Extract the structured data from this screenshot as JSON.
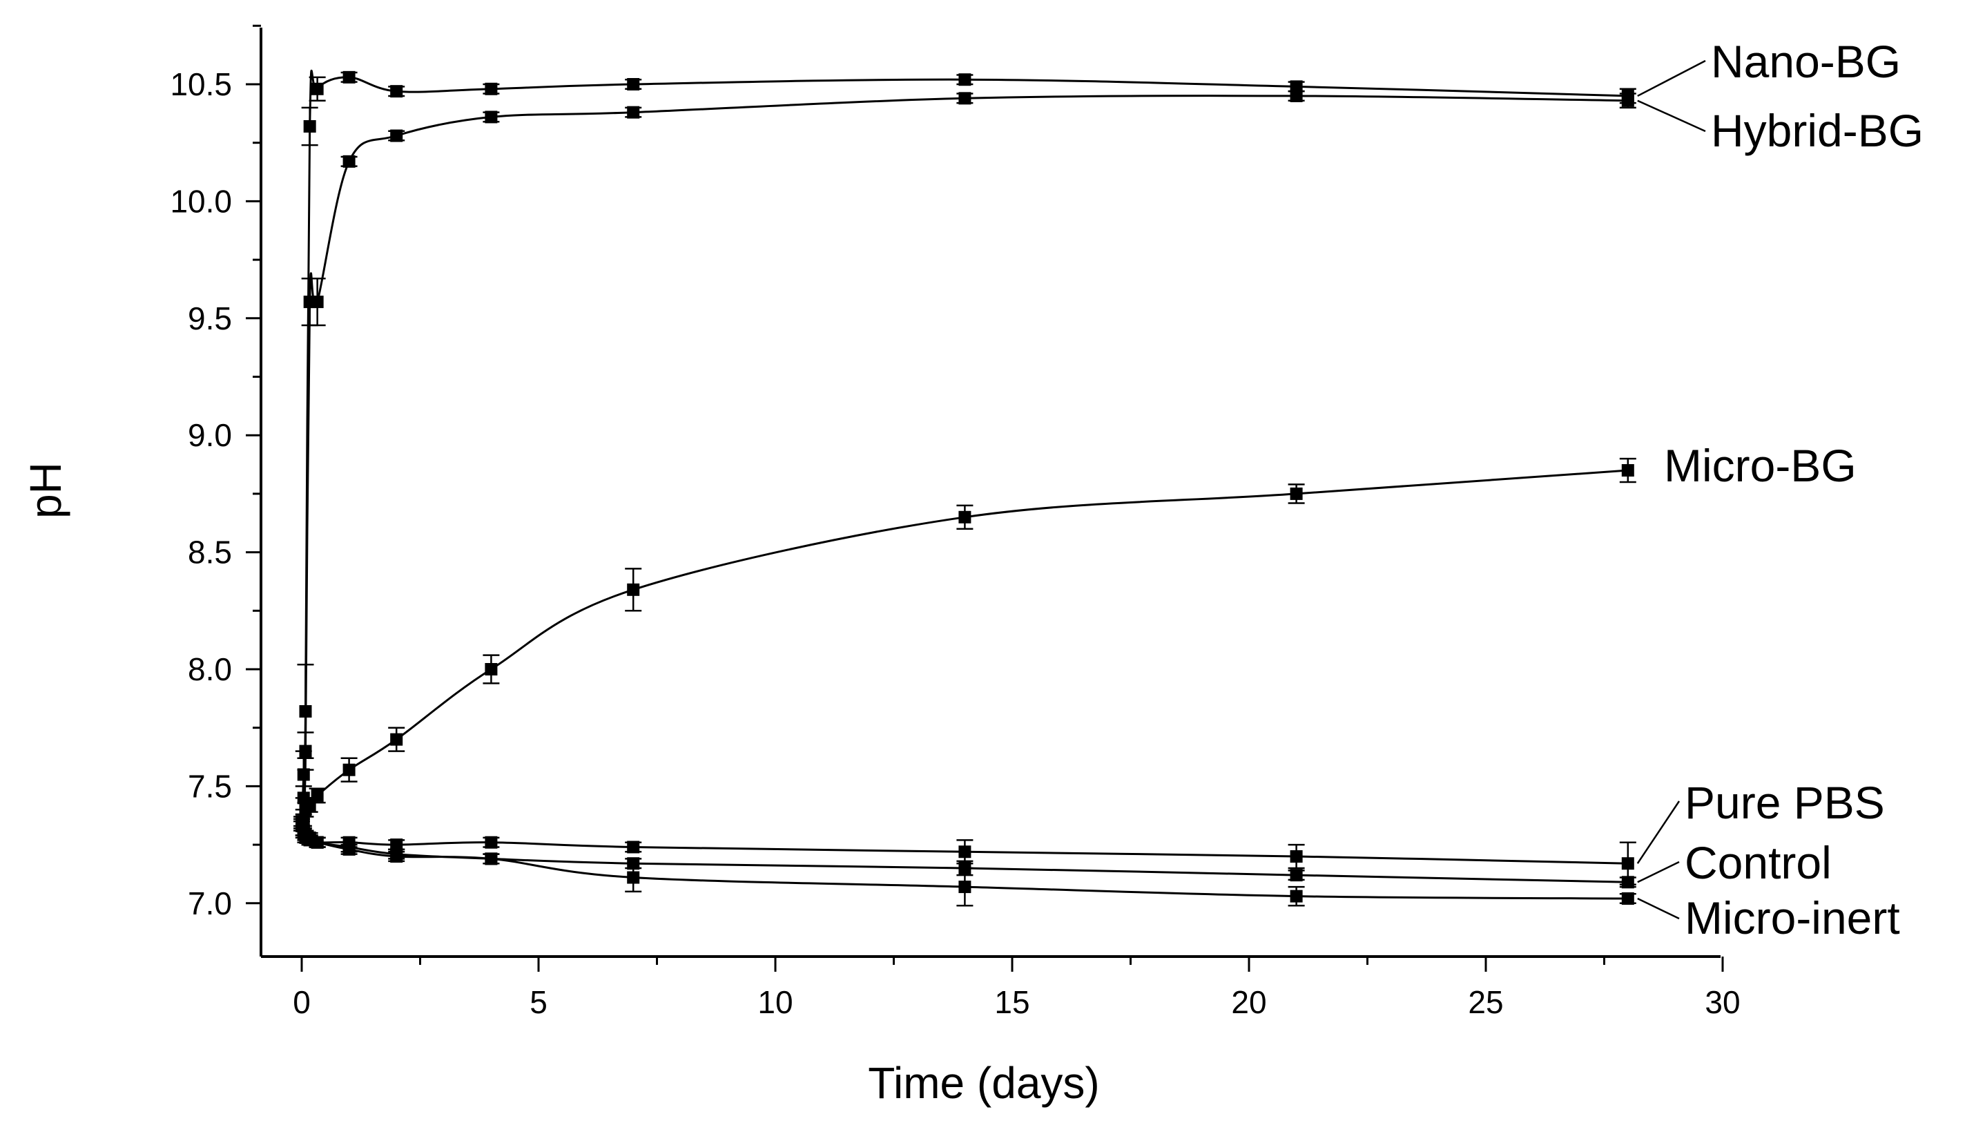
{
  "chart_data": {
    "type": "line",
    "title": "",
    "xlabel": "Time (days)",
    "ylabel": "pH",
    "xlim": [
      -0.9,
      30
    ],
    "ylim": [
      6.75,
      10.85
    ],
    "xticks": [
      0,
      5,
      10,
      15,
      20,
      25,
      30
    ],
    "yticks": [
      7.0,
      7.5,
      8.0,
      8.5,
      9.0,
      9.5,
      10.0,
      10.5
    ],
    "grid": false,
    "legend": "labels at right end of each curve",
    "series": [
      {
        "name": "Nano-BG",
        "x": [
          0,
          0.04,
          0.08,
          0.17,
          0.33,
          1,
          2,
          4,
          7,
          14,
          21,
          28
        ],
        "y": [
          7.33,
          7.55,
          7.82,
          10.32,
          10.48,
          10.53,
          10.47,
          10.48,
          10.5,
          10.52,
          10.49,
          10.45
        ],
        "err": [
          0.02,
          0.1,
          0.2,
          0.08,
          0.05,
          0.02,
          0.02,
          0.02,
          0.02,
          0.02,
          0.02,
          0.03
        ]
      },
      {
        "name": "Hybrid-BG",
        "x": [
          0,
          0.04,
          0.08,
          0.17,
          0.33,
          1,
          2,
          4,
          7,
          14,
          21,
          28
        ],
        "y": [
          7.35,
          7.45,
          7.65,
          9.57,
          9.57,
          10.17,
          10.28,
          10.36,
          10.38,
          10.44,
          10.45,
          10.43
        ],
        "err": [
          0.02,
          0.05,
          0.08,
          0.1,
          0.1,
          0.02,
          0.02,
          0.02,
          0.02,
          0.02,
          0.02,
          0.03
        ]
      },
      {
        "name": "Micro-BG",
        "x": [
          0,
          0.04,
          0.08,
          0.17,
          0.33,
          1,
          2,
          4,
          7,
          14,
          21,
          28
        ],
        "y": [
          7.33,
          7.35,
          7.4,
          7.42,
          7.46,
          7.57,
          7.7,
          8.0,
          8.34,
          8.65,
          8.75,
          8.85
        ],
        "err": [
          0.02,
          0.03,
          0.03,
          0.03,
          0.03,
          0.05,
          0.05,
          0.06,
          0.09,
          0.05,
          0.04,
          0.05
        ]
      },
      {
        "name": "Pure PBS",
        "x": [
          0,
          0.04,
          0.08,
          0.17,
          0.33,
          1,
          2,
          4,
          7,
          14,
          21,
          28
        ],
        "y": [
          7.33,
          7.31,
          7.29,
          7.27,
          7.26,
          7.26,
          7.25,
          7.26,
          7.24,
          7.22,
          7.2,
          7.17
        ],
        "err": [
          0.02,
          0.02,
          0.02,
          0.02,
          0.02,
          0.02,
          0.02,
          0.02,
          0.02,
          0.05,
          0.05,
          0.09
        ]
      },
      {
        "name": "Control",
        "x": [
          0,
          0.04,
          0.08,
          0.17,
          0.33,
          1,
          2,
          4,
          7,
          14,
          21,
          28
        ],
        "y": [
          7.34,
          7.31,
          7.29,
          7.28,
          7.26,
          7.24,
          7.21,
          7.19,
          7.17,
          7.15,
          7.12,
          7.09
        ],
        "err": [
          0.02,
          0.02,
          0.02,
          0.02,
          0.02,
          0.02,
          0.02,
          0.02,
          0.02,
          0.03,
          0.02,
          0.02
        ]
      },
      {
        "name": "Micro-inert",
        "x": [
          0,
          0.04,
          0.08,
          0.17,
          0.33,
          1,
          2,
          4,
          7,
          14,
          21,
          28
        ],
        "y": [
          7.33,
          7.3,
          7.28,
          7.27,
          7.26,
          7.23,
          7.2,
          7.19,
          7.11,
          7.07,
          7.03,
          7.02
        ],
        "err": [
          0.02,
          0.02,
          0.02,
          0.02,
          0.02,
          0.02,
          0.02,
          0.02,
          0.06,
          0.08,
          0.04,
          0.02
        ]
      }
    ]
  }
}
